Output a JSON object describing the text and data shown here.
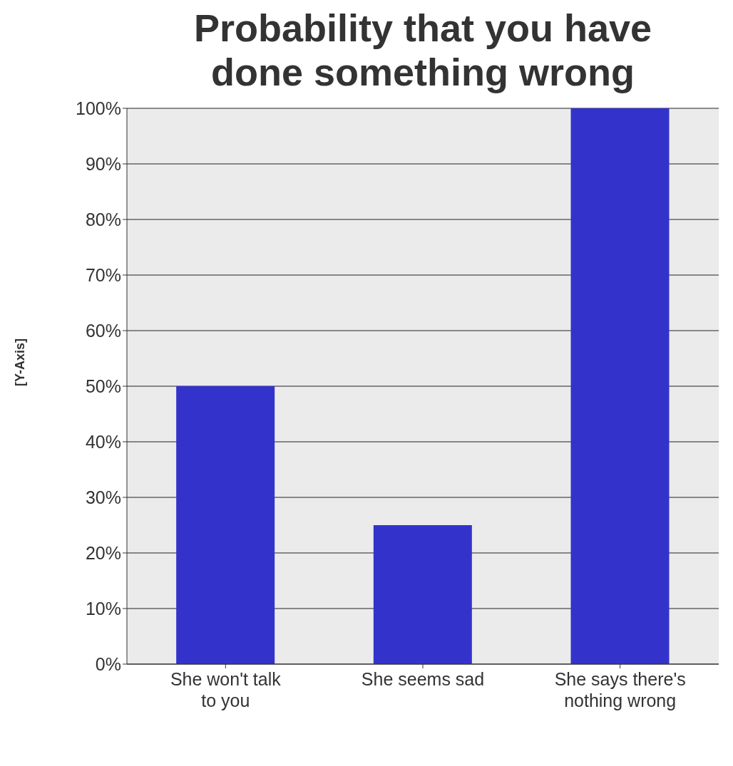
{
  "chart_data": {
    "type": "bar",
    "title": "Probability that you have done something wrong",
    "ylabel": "[Y-Axis]",
    "categories": [
      "She won't talk to you",
      "She seems sad",
      "She says there's nothing wrong"
    ],
    "values": [
      50,
      25,
      100
    ],
    "color": "#3333cc",
    "ylim": [
      0,
      100
    ],
    "yticks": [
      {
        "value": 0,
        "label": "0%"
      },
      {
        "value": 10,
        "label": "10%"
      },
      {
        "value": 20,
        "label": "20%"
      },
      {
        "value": 30,
        "label": "30%"
      },
      {
        "value": 40,
        "label": "40%"
      },
      {
        "value": 50,
        "label": "50%"
      },
      {
        "value": 60,
        "label": "60%"
      },
      {
        "value": 70,
        "label": "70%"
      },
      {
        "value": 80,
        "label": "80%"
      },
      {
        "value": 90,
        "label": "90%"
      },
      {
        "value": 100,
        "label": "100%"
      }
    ],
    "grid": "y",
    "legend": false
  }
}
